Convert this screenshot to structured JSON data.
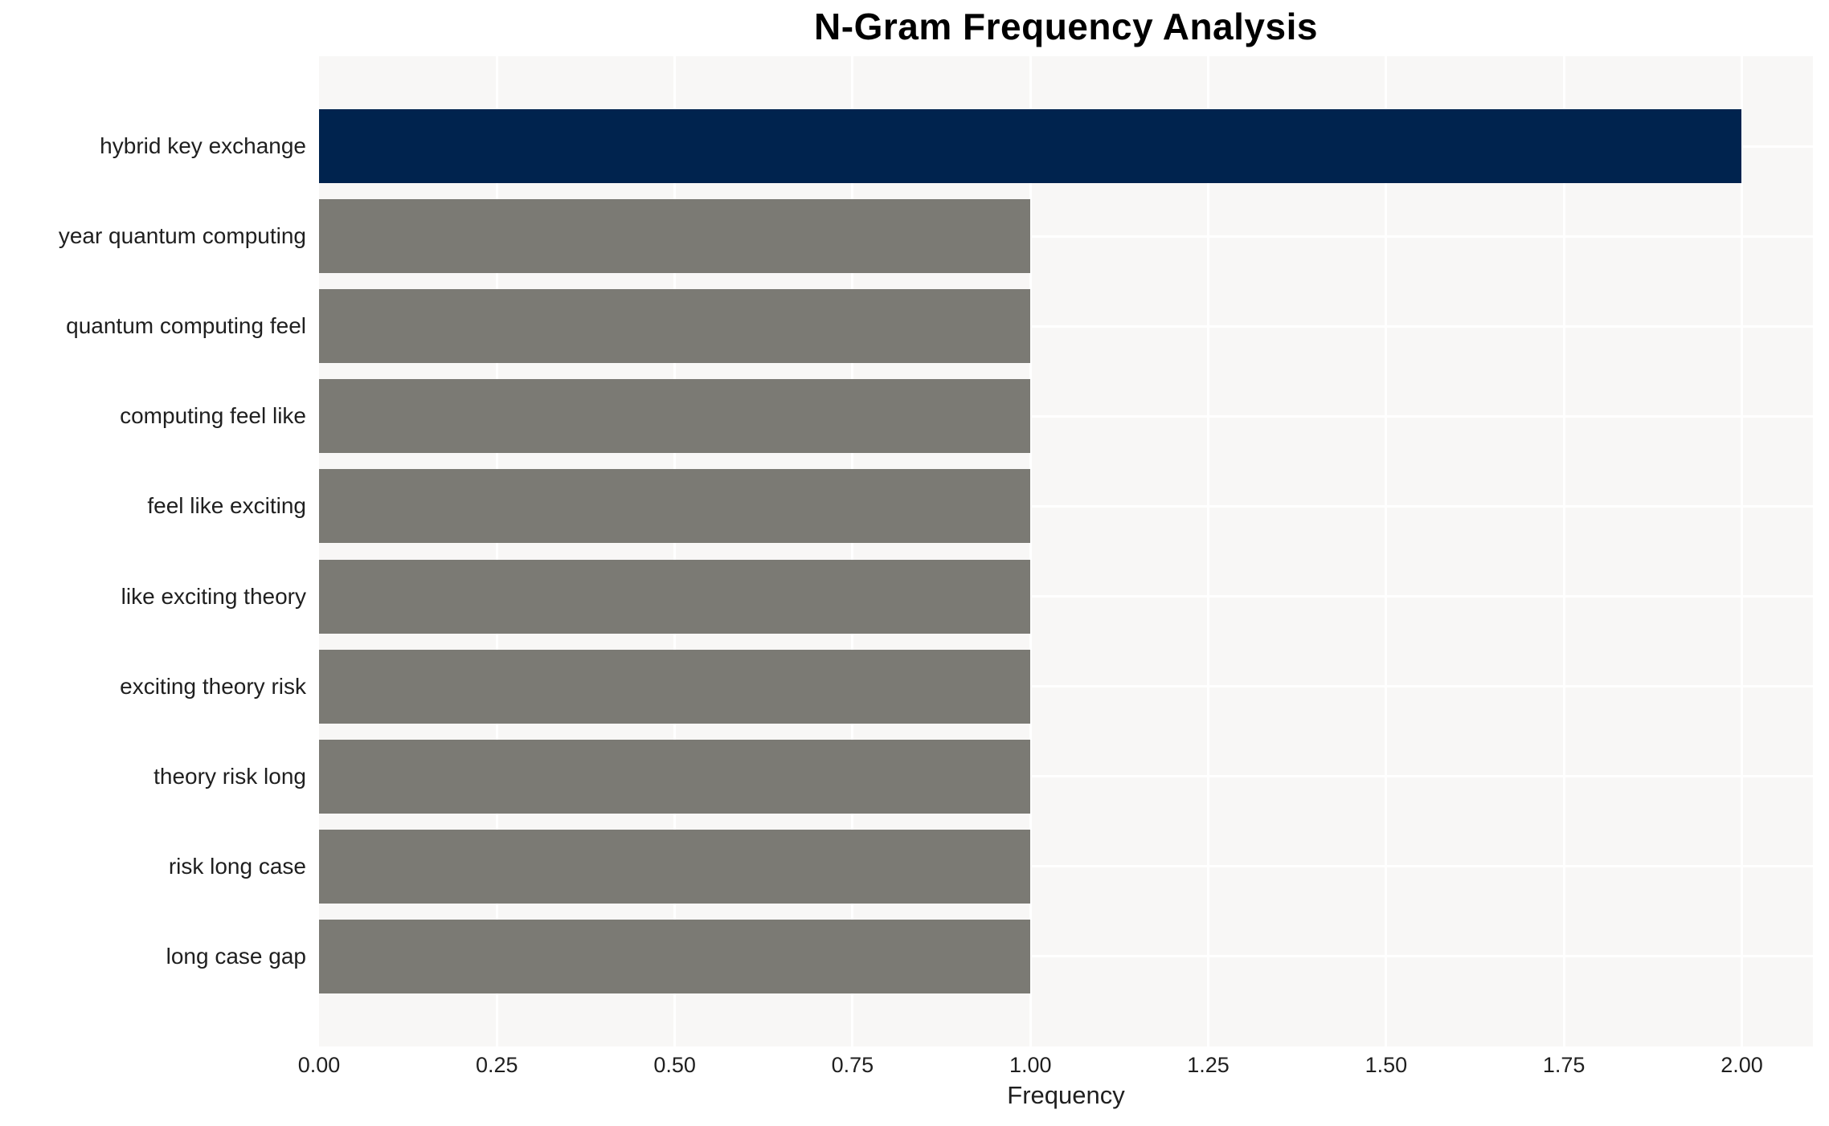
{
  "chart_data": {
    "type": "bar",
    "orientation": "horizontal",
    "title": "N-Gram Frequency Analysis",
    "xlabel": "Frequency",
    "ylabel": "",
    "categories": [
      "hybrid key exchange",
      "year quantum computing",
      "quantum computing feel",
      "computing feel like",
      "feel like exciting",
      "like exciting theory",
      "exciting theory risk",
      "theory risk long",
      "risk long case",
      "long case gap"
    ],
    "values": [
      2,
      1,
      1,
      1,
      1,
      1,
      1,
      1,
      1,
      1
    ],
    "bar_colors": [
      "#00234e",
      "#7b7a74",
      "#7b7a74",
      "#7b7a74",
      "#7b7a74",
      "#7b7a74",
      "#7b7a74",
      "#7b7a74",
      "#7b7a74",
      "#7b7a74"
    ],
    "xlim": [
      0,
      2.1
    ],
    "xticks": [
      "0.00",
      "0.25",
      "0.50",
      "0.75",
      "1.00",
      "1.25",
      "1.50",
      "1.75",
      "2.00"
    ],
    "xtick_values": [
      0,
      0.25,
      0.5,
      0.75,
      1.0,
      1.25,
      1.5,
      1.75,
      2.0
    ],
    "grid": true,
    "legend": "none",
    "colors": {
      "highlight_bar": "#00234e",
      "default_bar": "#7b7a74",
      "plot_background": "#f8f7f6",
      "gridline": "#ffffff",
      "text": "#1f1f1f",
      "title_text": "#000000"
    }
  }
}
